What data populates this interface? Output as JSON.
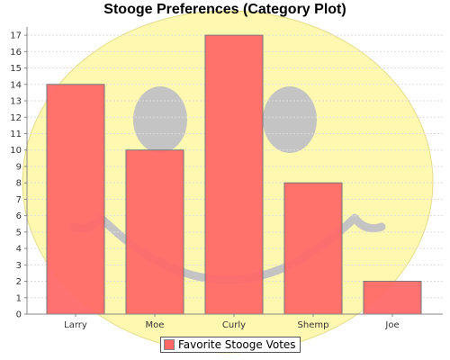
{
  "chart_data": {
    "type": "bar",
    "title": "Stooge Preferences (Category Plot)",
    "xlabel": "",
    "ylabel": "",
    "categories": [
      "Larry",
      "Moe",
      "Curly",
      "Shemp",
      "Joe"
    ],
    "series": [
      {
        "name": "Favorite Stooge Votes",
        "values": [
          14,
          10,
          17,
          8,
          2
        ]
      }
    ],
    "ylim": [
      0,
      17.5
    ],
    "yticks": [
      "0",
      "1",
      "2",
      "3",
      "4",
      "5",
      "6",
      "7",
      "8",
      "9",
      "10",
      "11",
      "12",
      "13",
      "14",
      "15",
      "16",
      "17"
    ],
    "grid": true,
    "legend_position": "bottom",
    "background": "smiley-face",
    "colors": {
      "bar": "#ff6666",
      "face": "#fff7a8",
      "features": "#c8c8c8",
      "grid": "#dddddd"
    }
  }
}
